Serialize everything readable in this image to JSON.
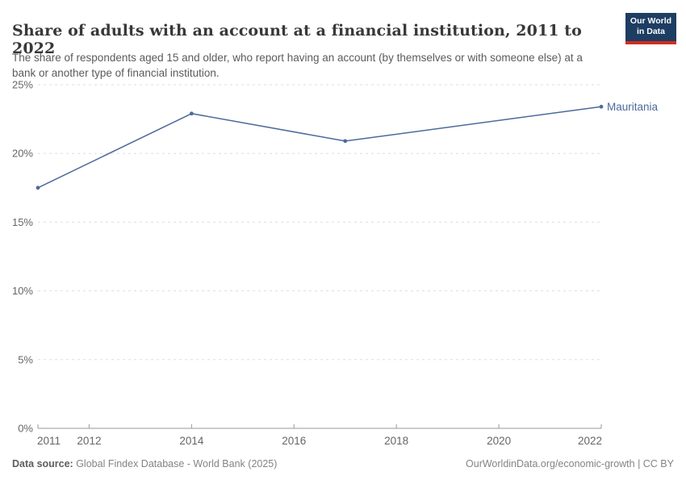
{
  "header": {
    "title": "Share of adults with an account at a financial institution, 2011 to 2022",
    "subtitle": "The share of respondents aged 15 and older, who report having an account (by themselves or with someone else) at a bank or another type of financial institution.",
    "logo": {
      "line1": "Our World",
      "line2": "in Data",
      "bg_color": "#1d3d63",
      "accent_color": "#d12d1e"
    }
  },
  "chart_data": {
    "type": "line",
    "title": "Share of adults with an account at a financial institution, 2011 to 2022",
    "series": [
      {
        "name": "Mauritania",
        "color": "#4C6A9C",
        "points": [
          {
            "x": 2011,
            "y": 17.5
          },
          {
            "x": 2014,
            "y": 22.9
          },
          {
            "x": 2017,
            "y": 20.9
          },
          {
            "x": 2022,
            "y": 23.4
          }
        ]
      }
    ],
    "xlim": [
      2011,
      2022
    ],
    "ylim": [
      0,
      25
    ],
    "xticks": [
      2011,
      2012,
      2014,
      2016,
      2018,
      2020,
      2022
    ],
    "yticks": [
      0,
      5,
      10,
      15,
      20,
      25
    ],
    "ytick_suffix": "%",
    "grid": "horizontal-dashed",
    "grid_color": "#dedede",
    "axis_color": "#999999",
    "tick_label_color": "#666666",
    "legend_position": "end-of-line-label"
  },
  "footer": {
    "source_label": "Data source:",
    "source_text": " Global Findex Database - World Bank (2025)",
    "credit": "OurWorldinData.org/economic-growth | CC BY"
  }
}
